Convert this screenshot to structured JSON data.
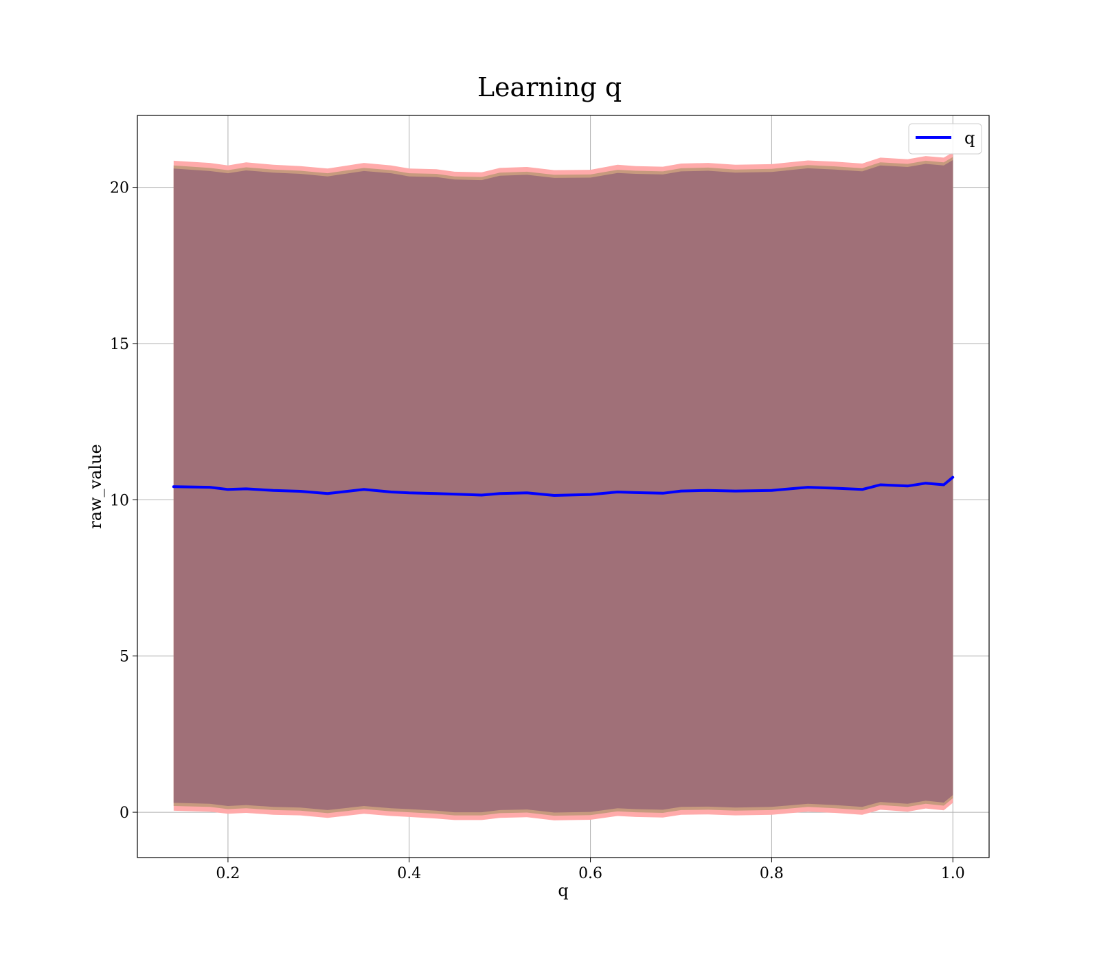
{
  "chart_data": {
    "type": "line",
    "title": "Learning q",
    "xlabel": "q",
    "ylabel": "raw_value",
    "xlim": [
      0.1,
      1.04
    ],
    "ylim": [
      -1.45,
      22.3
    ],
    "xticks": [
      0.2,
      0.4,
      0.6,
      0.8,
      1.0
    ],
    "xtick_labels": [
      "0.2",
      "0.4",
      "0.6",
      "0.8",
      "1.0"
    ],
    "yticks": [
      0,
      5,
      10,
      15,
      20
    ],
    "ytick_labels": [
      "0",
      "5",
      "10",
      "15",
      "20"
    ],
    "grid": true,
    "legend": {
      "placement": "top-right",
      "entries": [
        "q"
      ]
    },
    "colors": {
      "line": "#0000ff",
      "band_outer": "#ffaaaa",
      "band_middle": "#c79a7e",
      "band_inner": "#a07078"
    },
    "x": [
      0.14,
      0.18,
      0.2,
      0.22,
      0.25,
      0.28,
      0.31,
      0.35,
      0.38,
      0.4,
      0.43,
      0.45,
      0.48,
      0.5,
      0.53,
      0.56,
      0.6,
      0.63,
      0.65,
      0.68,
      0.7,
      0.73,
      0.76,
      0.8,
      0.84,
      0.87,
      0.9,
      0.92,
      0.95,
      0.97,
      0.99,
      1.0
    ],
    "series": [
      {
        "name": "q",
        "values": [
          10.42,
          10.4,
          10.33,
          10.35,
          10.3,
          10.27,
          10.2,
          10.33,
          10.25,
          10.22,
          10.2,
          10.18,
          10.15,
          10.2,
          10.22,
          10.14,
          10.17,
          10.25,
          10.23,
          10.21,
          10.28,
          10.3,
          10.28,
          10.3,
          10.4,
          10.37,
          10.33,
          10.48,
          10.44,
          10.53,
          10.48,
          10.72
        ]
      }
    ],
    "bands": [
      {
        "upper": [
          20.85,
          20.78,
          20.7,
          20.8,
          20.72,
          20.68,
          20.6,
          20.78,
          20.7,
          20.6,
          20.58,
          20.5,
          20.48,
          20.62,
          20.65,
          20.55,
          20.56,
          20.72,
          20.68,
          20.66,
          20.76,
          20.78,
          20.72,
          20.74,
          20.86,
          20.82,
          20.76,
          20.95,
          20.9,
          21.0,
          20.95,
          21.12
        ],
        "lower": [
          0.05,
          0.02,
          -0.05,
          -0.02,
          -0.08,
          -0.1,
          -0.18,
          -0.05,
          -0.12,
          -0.15,
          -0.2,
          -0.25,
          -0.25,
          -0.18,
          -0.16,
          -0.26,
          -0.24,
          -0.12,
          -0.15,
          -0.17,
          -0.08,
          -0.07,
          -0.1,
          -0.08,
          0.02,
          -0.02,
          -0.08,
          0.08,
          0.02,
          0.12,
          0.06,
          0.3
        ]
      },
      {
        "upper": [
          20.7,
          20.62,
          20.55,
          20.64,
          20.57,
          20.53,
          20.45,
          20.62,
          20.55,
          20.45,
          20.43,
          20.35,
          20.33,
          20.47,
          20.5,
          20.4,
          20.41,
          20.56,
          20.53,
          20.51,
          20.61,
          20.63,
          20.57,
          20.59,
          20.71,
          20.67,
          20.61,
          20.8,
          20.75,
          20.85,
          20.8,
          20.97
        ],
        "lower": [
          0.2,
          0.17,
          0.1,
          0.13,
          0.07,
          0.05,
          -0.03,
          0.1,
          0.03,
          0.0,
          -0.05,
          -0.1,
          -0.1,
          -0.03,
          -0.01,
          -0.11,
          -0.09,
          0.03,
          0.0,
          -0.02,
          0.07,
          0.08,
          0.05,
          0.07,
          0.17,
          0.13,
          0.07,
          0.23,
          0.17,
          0.27,
          0.21,
          0.45
        ]
      },
      {
        "upper": [
          20.6,
          20.52,
          20.45,
          20.54,
          20.47,
          20.43,
          20.35,
          20.52,
          20.45,
          20.35,
          20.33,
          20.25,
          20.23,
          20.37,
          20.4,
          20.3,
          20.31,
          20.46,
          20.43,
          20.41,
          20.51,
          20.53,
          20.47,
          20.49,
          20.61,
          20.57,
          20.51,
          20.7,
          20.65,
          20.75,
          20.7,
          20.87
        ],
        "lower": [
          0.3,
          0.27,
          0.2,
          0.23,
          0.17,
          0.15,
          0.07,
          0.2,
          0.13,
          0.1,
          0.05,
          0.0,
          0.0,
          0.07,
          0.09,
          -0.01,
          0.01,
          0.13,
          0.1,
          0.08,
          0.17,
          0.18,
          0.15,
          0.17,
          0.27,
          0.23,
          0.17,
          0.33,
          0.27,
          0.37,
          0.31,
          0.55
        ]
      }
    ]
  }
}
